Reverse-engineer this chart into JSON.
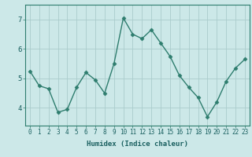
{
  "xlabel": "Humidex (Indice chaleur)",
  "ylabel": "",
  "x_values": [
    0,
    1,
    2,
    3,
    4,
    5,
    6,
    7,
    8,
    9,
    10,
    11,
    12,
    13,
    14,
    15,
    16,
    17,
    18,
    19,
    20,
    21,
    22,
    23
  ],
  "y_values": [
    5.25,
    4.75,
    4.65,
    3.85,
    3.95,
    4.7,
    5.2,
    4.95,
    4.5,
    5.5,
    7.05,
    6.5,
    6.35,
    6.65,
    6.2,
    5.75,
    5.1,
    4.7,
    4.35,
    3.7,
    4.2,
    4.9,
    5.35,
    5.65
  ],
  "line_color": "#2e7d6e",
  "marker": "D",
  "marker_size": 2.5,
  "line_width": 1.0,
  "bg_color": "#cce8e8",
  "grid_color": "#aacccc",
  "yticks": [
    4,
    5,
    6,
    7
  ],
  "xtick_labels": [
    "0",
    "1",
    "2",
    "3",
    "4",
    "5",
    "6",
    "7",
    "8",
    "9",
    "10",
    "11",
    "12",
    "13",
    "14",
    "15",
    "16",
    "17",
    "18",
    "19",
    "20",
    "21",
    "22",
    "23"
  ],
  "ylim": [
    3.4,
    7.5
  ],
  "xlim": [
    -0.5,
    23.5
  ],
  "tick_fontsize": 5.5,
  "ytick_fontsize": 6.5,
  "xlabel_fontsize": 6.5
}
